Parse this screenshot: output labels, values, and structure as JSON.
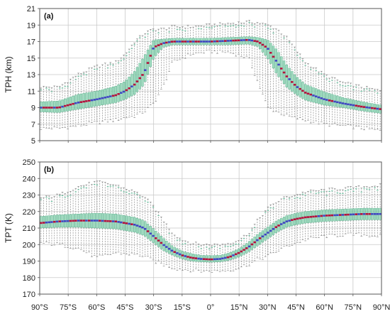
{
  "colors": {
    "box_fill": "#8fd3b4",
    "box_edge": "#4aa882",
    "whisker": "#777777",
    "outlier": "#5cc09a",
    "median_blue": "#3f46c0",
    "median_red": "#b3123c",
    "grid": "#c9c9c9",
    "frame": "#555555"
  },
  "x_tick_labels": [
    "90°S",
    "75°S",
    "60°S",
    "45°S",
    "30°S",
    "15°S",
    "0°",
    "15°N",
    "30°N",
    "45°N",
    "60°N",
    "75°N",
    "90°N"
  ],
  "chart_data": [
    {
      "type": "box",
      "panel_label": "(a)",
      "ylabel": "TPH (km)",
      "xlabel": "",
      "xlim": [
        -90,
        90
      ],
      "ylim": [
        5,
        21
      ],
      "yticks": [
        5,
        7,
        9,
        11,
        13,
        15,
        17,
        19,
        21
      ],
      "grid": true,
      "lat": [
        -90,
        -80,
        -70,
        -60,
        -50,
        -45,
        -40,
        -35,
        -30,
        -25,
        -20,
        -10,
        0,
        10,
        20,
        25,
        30,
        35,
        40,
        45,
        50,
        60,
        70,
        80,
        90
      ],
      "median": [
        9.0,
        9.0,
        9.6,
        10.0,
        10.5,
        11.0,
        11.8,
        13.2,
        16.3,
        16.8,
        17.0,
        17.0,
        17.0,
        17.1,
        17.2,
        17.0,
        16.2,
        14.5,
        12.8,
        11.6,
        10.8,
        10.0,
        9.5,
        9.1,
        8.8
      ],
      "q1": [
        8.5,
        8.4,
        8.8,
        9.2,
        9.6,
        10.0,
        10.6,
        11.8,
        15.0,
        16.3,
        16.6,
        16.6,
        16.6,
        16.6,
        16.7,
        16.4,
        15.0,
        13.0,
        11.5,
        10.6,
        9.9,
        9.3,
        9.0,
        8.6,
        8.3
      ],
      "q3": [
        9.7,
        9.8,
        10.6,
        11.0,
        11.6,
        12.2,
        13.4,
        15.2,
        17.2,
        17.3,
        17.4,
        17.4,
        17.4,
        17.5,
        17.6,
        17.5,
        17.2,
        16.0,
        14.2,
        12.8,
        11.8,
        10.9,
        10.2,
        9.7,
        9.3
      ],
      "whisker_low": [
        6.5,
        6.5,
        6.8,
        7.2,
        7.5,
        7.8,
        8.0,
        8.5,
        9.5,
        11.5,
        14.5,
        15.5,
        15.8,
        15.7,
        15.0,
        12.0,
        9.0,
        8.5,
        8.0,
        7.7,
        7.5,
        7.0,
        6.8,
        6.5,
        6.2
      ],
      "whisker_high": [
        11.5,
        11.5,
        13.0,
        14.0,
        14.5,
        15.5,
        17.0,
        18.0,
        18.5,
        18.5,
        18.8,
        18.8,
        19.0,
        19.2,
        19.4,
        19.3,
        19.0,
        18.5,
        17.5,
        16.0,
        14.5,
        13.0,
        12.0,
        11.5,
        11.0
      ]
    },
    {
      "type": "box",
      "panel_label": "(b)",
      "ylabel": "TPT (K)",
      "xlabel": "",
      "xlim": [
        -90,
        90
      ],
      "ylim": [
        170,
        250
      ],
      "yticks": [
        170,
        180,
        190,
        200,
        210,
        220,
        230,
        240,
        250
      ],
      "grid": true,
      "lat": [
        -90,
        -80,
        -70,
        -60,
        -50,
        -40,
        -35,
        -30,
        -25,
        -20,
        -15,
        -10,
        -5,
        0,
        5,
        10,
        15,
        20,
        25,
        30,
        35,
        40,
        45,
        50,
        60,
        70,
        80,
        90
      ],
      "median": [
        213,
        214,
        214.5,
        214.5,
        214,
        212,
        210,
        205,
        200,
        196,
        193.5,
        192,
        191.3,
        191,
        191.3,
        192.5,
        195,
        198.5,
        203,
        207,
        211,
        214,
        215.5,
        216.5,
        217.5,
        218,
        218.5,
        218.5
      ],
      "q1": [
        210,
        210.5,
        210.5,
        210,
        209.5,
        207.5,
        205.5,
        201,
        196.5,
        193.5,
        191.3,
        190,
        189.5,
        189.3,
        189.5,
        190.5,
        192.5,
        195.5,
        199.5,
        203.5,
        207.5,
        210.5,
        212,
        213,
        214,
        214.5,
        215,
        215
      ],
      "q3": [
        217,
        218,
        218.5,
        219,
        218.5,
        216.5,
        214.5,
        209.5,
        204,
        199,
        196,
        194.5,
        193.5,
        193.3,
        193.5,
        195,
        197.5,
        201.5,
        206.5,
        210.5,
        214.5,
        217.5,
        219,
        220,
        221,
        221.5,
        222,
        222
      ],
      "whisker_low": [
        201,
        200,
        198,
        192,
        195,
        194,
        193,
        190,
        188,
        186,
        185,
        184.5,
        184,
        184,
        184,
        184.5,
        186,
        188,
        191,
        193,
        196,
        199,
        201,
        203,
        205,
        206,
        206,
        205
      ],
      "whisker_high": [
        228,
        230,
        235,
        238,
        236,
        232,
        229,
        223,
        215,
        207,
        203,
        201,
        200,
        200,
        200,
        201,
        203,
        207,
        215,
        222,
        226,
        229,
        230,
        232,
        233,
        234,
        235,
        236
      ]
    }
  ]
}
